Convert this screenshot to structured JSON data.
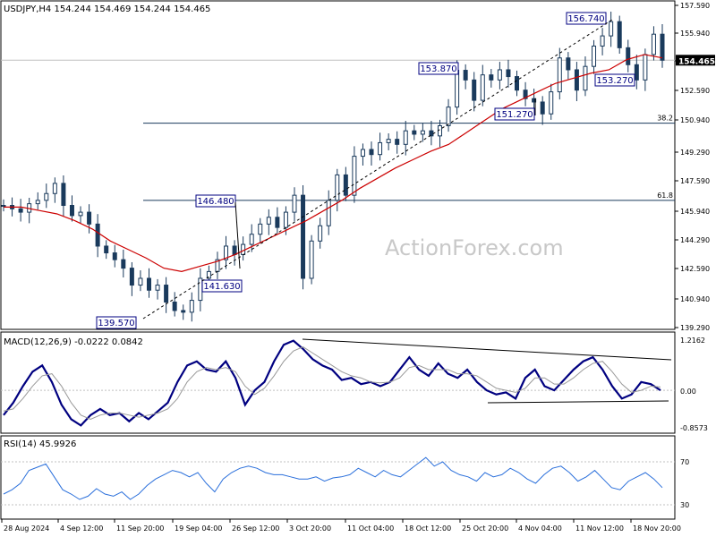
{
  "symbol_header": "USDJPY,H4  154.244 154.469 154.244 154.465",
  "watermark": "ActionForex.com",
  "colors": {
    "candle": "#1a3a5c",
    "ma": "#cc0000",
    "macd_line": "#000080",
    "signal_line": "#999999",
    "rsi_line": "#2a6fdb",
    "annotation_box": "#000080",
    "grid": "#c0c0c0"
  },
  "chart_data": [
    {
      "type": "candlestick",
      "title": "USDJPY,H4",
      "ohlc": {
        "open": 154.244,
        "high": 154.469,
        "low": 154.244,
        "close": 154.465
      },
      "ylim": [
        138.8,
        157.7
      ],
      "y_ticks": [
        "157.590",
        "155.940",
        "154.290",
        "152.590",
        "150.940",
        "149.290",
        "147.590",
        "145.940",
        "144.290",
        "142.590",
        "140.940",
        "139.290"
      ],
      "current_price_label": "154.465",
      "close_series_approx": [
        145.9,
        145.7,
        145.5,
        146.0,
        146.2,
        146.6,
        147.2,
        145.9,
        145.3,
        145.5,
        144.8,
        143.5,
        143.1,
        142.7,
        142.2,
        141.2,
        141.6,
        140.9,
        141.2,
        140.2,
        139.7,
        139.6,
        140.3,
        141.6,
        142.0,
        142.7,
        143.5,
        143.0,
        143.6,
        144.2,
        144.8,
        145.2,
        144.6,
        145.5,
        146.5,
        141.6,
        143.8,
        144.7,
        146.2,
        147.7,
        146.5,
        148.8,
        149.2,
        148.9,
        149.6,
        149.8,
        149.5,
        150.3,
        150.1,
        150.3,
        150.0,
        150.6,
        151.7,
        153.87,
        153.3,
        152.1,
        153.6,
        153.3,
        153.9,
        153.5,
        152.7,
        152.2,
        152.0,
        151.3,
        152.6,
        154.6,
        153.9,
        152.7,
        154.1,
        155.3,
        155.9,
        156.74,
        155.2,
        154.2,
        153.3,
        154.8,
        156.0,
        154.465
      ],
      "ma_series_approx": [
        145.8,
        145.8,
        145.6,
        145.4,
        145.0,
        144.5,
        143.8,
        143.3,
        142.8,
        142.2,
        142.0,
        142.3,
        142.6,
        143.0,
        143.5,
        144.0,
        144.5,
        145.0,
        145.6,
        146.2,
        146.9,
        147.5,
        148.1,
        148.6,
        149.1,
        149.5,
        150.2,
        150.9,
        151.6,
        152.1,
        152.6,
        153.1,
        153.4,
        153.7,
        153.9,
        154.5,
        154.8,
        154.6
      ],
      "annotations": [
        "156.740",
        "153.870",
        "153.270",
        "151.270",
        "146.480",
        "141.630",
        "139.570"
      ],
      "fib_levels": [
        {
          "label": "38.2",
          "price": 150.75
        },
        {
          "label": "61.8",
          "price": 146.2
        }
      ],
      "trendline_from": "139.570",
      "trendline_to": "156.740"
    },
    {
      "type": "line",
      "title": "MACD(12,26,9) -0.0222 0.0842",
      "series": [
        {
          "name": "MACD",
          "values": [
            -0.6,
            -0.3,
            0.1,
            0.45,
            0.6,
            0.2,
            -0.35,
            -0.7,
            -0.85,
            -0.6,
            -0.45,
            -0.6,
            -0.55,
            -0.75,
            -0.55,
            -0.7,
            -0.5,
            -0.3,
            0.2,
            0.6,
            0.7,
            0.5,
            0.45,
            0.7,
            0.3,
            -0.35,
            0.0,
            0.2,
            0.7,
            1.1,
            1.2,
            1.0,
            0.75,
            0.6,
            0.5,
            0.25,
            0.3,
            0.15,
            0.2,
            0.1,
            0.2,
            0.5,
            0.8,
            0.5,
            0.35,
            0.65,
            0.4,
            0.3,
            0.5,
            0.2,
            0.0,
            -0.1,
            -0.05,
            -0.2,
            0.3,
            0.5,
            0.1,
            0.0,
            0.25,
            0.5,
            0.7,
            0.8,
            0.5,
            0.1,
            -0.2,
            -0.1,
            0.2,
            0.15,
            0.0
          ]
        },
        {
          "name": "Signal",
          "values": [
            -0.5,
            -0.45,
            -0.2,
            0.1,
            0.35,
            0.4,
            0.1,
            -0.3,
            -0.6,
            -0.7,
            -0.6,
            -0.55,
            -0.55,
            -0.6,
            -0.65,
            -0.6,
            -0.55,
            -0.45,
            -0.2,
            0.2,
            0.45,
            0.55,
            0.5,
            0.55,
            0.45,
            0.1,
            -0.1,
            0.05,
            0.35,
            0.7,
            0.95,
            1.05,
            0.9,
            0.75,
            0.6,
            0.45,
            0.35,
            0.3,
            0.2,
            0.18,
            0.2,
            0.3,
            0.55,
            0.6,
            0.5,
            0.5,
            0.5,
            0.4,
            0.4,
            0.35,
            0.2,
            0.05,
            0.0,
            -0.05,
            0.05,
            0.3,
            0.3,
            0.15,
            0.15,
            0.3,
            0.5,
            0.65,
            0.7,
            0.45,
            0.15,
            -0.05,
            0.0,
            0.1,
            0.08
          ]
        }
      ],
      "ylim": [
        -0.95,
        1.3
      ],
      "y_ticks": [
        "1.2162",
        "0.00",
        "-0.8573"
      ]
    },
    {
      "type": "line",
      "title": "RSI(14) 45.9926",
      "series": [
        {
          "name": "RSI",
          "values": [
            40,
            44,
            50,
            62,
            65,
            68,
            56,
            44,
            40,
            35,
            38,
            45,
            40,
            38,
            42,
            35,
            40,
            48,
            54,
            58,
            62,
            60,
            56,
            60,
            50,
            42,
            54,
            60,
            64,
            66,
            64,
            60,
            58,
            58,
            56,
            54,
            54,
            56,
            52,
            55,
            56,
            58,
            64,
            60,
            56,
            62,
            58,
            56,
            62,
            68,
            74,
            66,
            70,
            62,
            58,
            56,
            52,
            60,
            56,
            58,
            64,
            60,
            54,
            50,
            58,
            64,
            66,
            60,
            52,
            56,
            62,
            54,
            46,
            44,
            52,
            56,
            60,
            54,
            46
          ]
        }
      ],
      "ylim": [
        20,
        90
      ],
      "y_ticks": [
        "70",
        "30"
      ]
    }
  ],
  "x_ticks": [
    "28 Aug 2024",
    "4 Sep 12:00",
    "11 Sep 20:00",
    "19 Sep 04:00",
    "26 Sep 12:00",
    "3 Oct 20:00",
    "11 Oct 04:00",
    "18 Oct 12:00",
    "25 Oct 20:00",
    "4 Nov 04:00",
    "11 Nov 12:00",
    "18 Nov 20:00"
  ]
}
